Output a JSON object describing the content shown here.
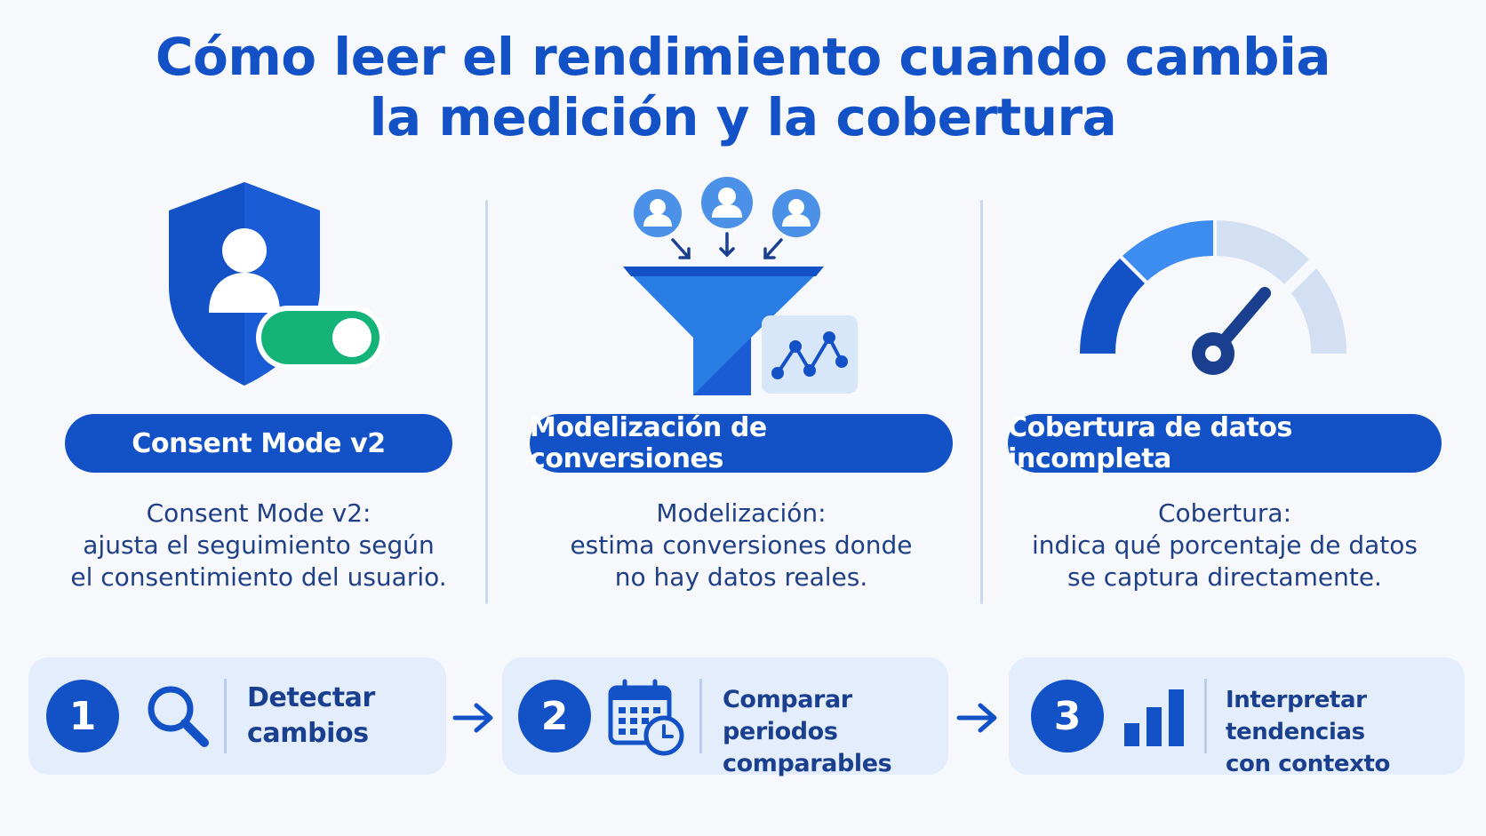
{
  "title": {
    "line1": "Cómo leer el rendimiento cuando cambia",
    "line2": "la medición y la cobertura"
  },
  "columns": [
    {
      "label": "Consent Mode v2",
      "desc": [
        "Consent Mode v2:",
        "ajusta el seguimiento según",
        "el consentimiento del usuario."
      ],
      "icon": "shield-user-toggle-icon"
    },
    {
      "label": "Modelización de conversiones",
      "desc": [
        "Modelización:",
        "estima conversiones donde",
        "no hay datos reales."
      ],
      "icon": "funnel-users-chart-icon"
    },
    {
      "label": "Cobertura de datos incompleta",
      "desc": [
        "Cobertura:",
        "indica qué porcentaje de datos",
        "se captura directamente."
      ],
      "icon": "gauge-icon"
    }
  ],
  "steps": [
    {
      "number": "1",
      "text": [
        "Detectar",
        "cambios"
      ],
      "icon": "search-icon"
    },
    {
      "number": "2",
      "text": [
        "Comparar periodos",
        "comparables"
      ],
      "icon": "calendar-clock-icon"
    },
    {
      "number": "3",
      "text": [
        "Interpretar tendencias",
        "con contexto"
      ],
      "icon": "bar-chart-icon"
    }
  ],
  "colors": {
    "primary": "#1351c7",
    "accent_blue": "#3d8cf0",
    "toggle_green": "#14b479",
    "light_panel": "#e3edfb"
  }
}
